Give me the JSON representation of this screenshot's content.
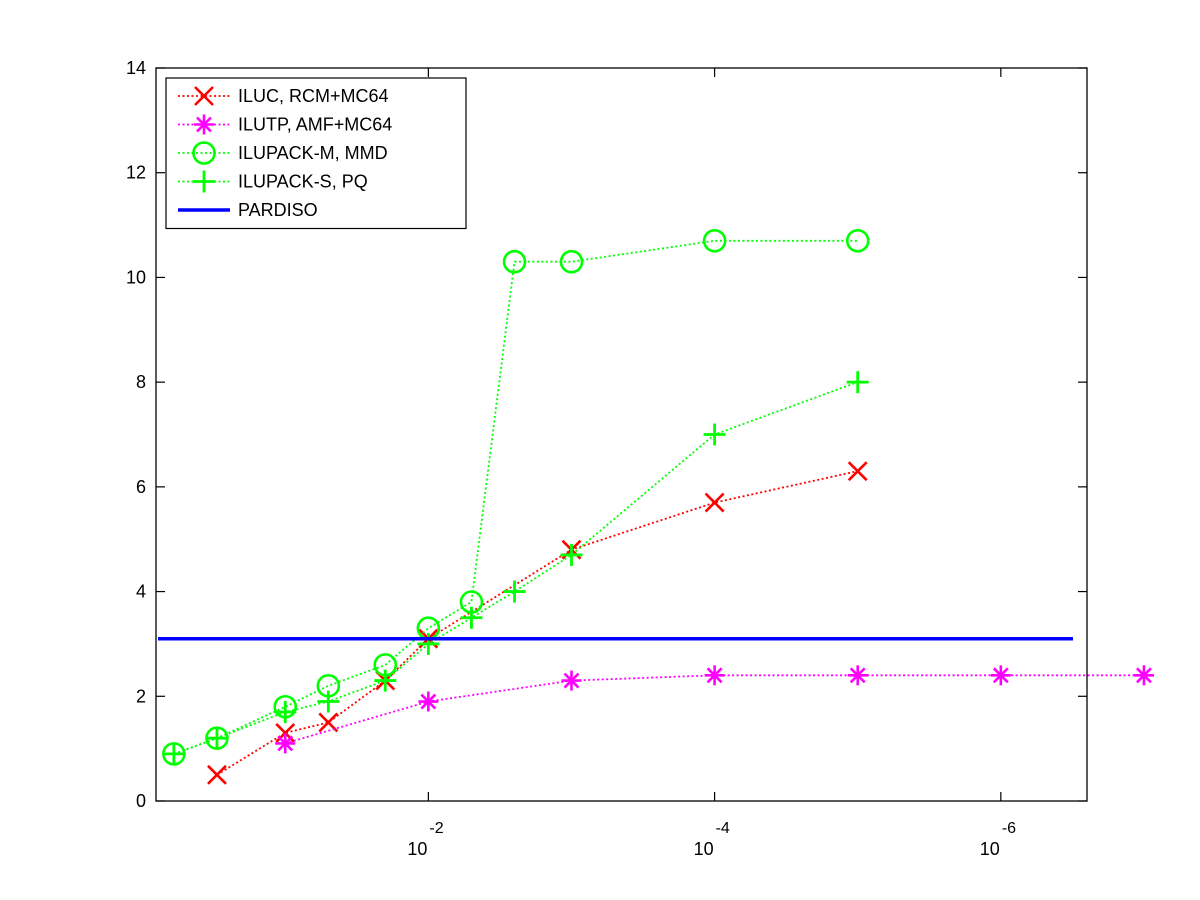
{
  "chart_data": {
    "type": "line",
    "xscale": "log",
    "xreverse": true,
    "xlim": [
      0.8,
      2.5e-07
    ],
    "ylim": [
      0,
      14
    ],
    "yticks": [
      0,
      2,
      4,
      6,
      8,
      10,
      12,
      14
    ],
    "xticks": [
      {
        "value": 0.01,
        "base": "10",
        "exponent": "-2"
      },
      {
        "value": 0.0001,
        "base": "10",
        "exponent": "-4"
      },
      {
        "value": 1e-06,
        "base": "10",
        "exponent": "-6"
      }
    ],
    "title": "",
    "xlabel": "",
    "ylabel": "",
    "legend_position": "top-left",
    "series": [
      {
        "name": "ILUC, RCM+MC64",
        "color": "#ff0000",
        "marker": "x",
        "points": [
          [
            0.3,
            0.5
          ],
          [
            0.1,
            1.3
          ],
          [
            0.05,
            1.5
          ],
          [
            0.02,
            2.3
          ],
          [
            0.01,
            3.1
          ],
          [
            0.001,
            4.8
          ],
          [
            0.0001,
            5.7
          ],
          [
            1e-05,
            6.3
          ]
        ]
      },
      {
        "name": "ILUTP, AMF+MC64",
        "color": "#ff00ff",
        "marker": "asterisk",
        "points": [
          [
            0.1,
            1.1
          ],
          [
            0.01,
            1.9
          ],
          [
            0.001,
            2.3
          ],
          [
            0.0001,
            2.4
          ],
          [
            1e-05,
            2.4
          ],
          [
            1e-06,
            2.4
          ],
          [
            1e-07,
            2.4
          ]
        ]
      },
      {
        "name": "ILUPACK-M, MMD",
        "color": "#00ff00",
        "marker": "circle",
        "points": [
          [
            0.6,
            0.9
          ],
          [
            0.3,
            1.2
          ],
          [
            0.1,
            1.8
          ],
          [
            0.05,
            2.2
          ],
          [
            0.02,
            2.6
          ],
          [
            0.01,
            3.3
          ],
          [
            0.005,
            3.8
          ],
          [
            0.0025,
            10.3
          ],
          [
            0.001,
            10.3
          ],
          [
            0.0001,
            10.7
          ],
          [
            1e-05,
            10.7
          ]
        ]
      },
      {
        "name": "ILUPACK-S, PQ",
        "color": "#00ff00",
        "marker": "plus",
        "points": [
          [
            0.6,
            0.9
          ],
          [
            0.3,
            1.2
          ],
          [
            0.1,
            1.7
          ],
          [
            0.05,
            1.9
          ],
          [
            0.02,
            2.3
          ],
          [
            0.01,
            3.0
          ],
          [
            0.005,
            3.5
          ],
          [
            0.0025,
            4.0
          ],
          [
            0.001,
            4.7
          ],
          [
            0.0001,
            7.0
          ],
          [
            1e-05,
            8.0
          ]
        ]
      },
      {
        "name": "PARDISO",
        "color": "#0000ff",
        "marker": "none",
        "constant": 3.1
      }
    ]
  }
}
